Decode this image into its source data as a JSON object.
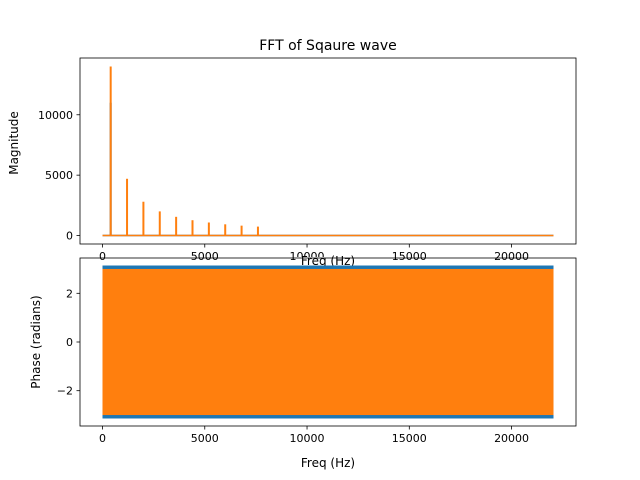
{
  "chart_data": [
    {
      "type": "line",
      "title": "FFT of Sqaure wave",
      "xlabel": "Freq (Hz)",
      "ylabel": "Magnitude",
      "xlim": [
        -1100,
        23150
      ],
      "ylim": [
        -700,
        14700
      ],
      "xticks": [
        0,
        5000,
        10000,
        15000,
        20000
      ],
      "xtick_labels": [
        "0",
        "5000",
        "10000",
        "15000",
        "20000"
      ],
      "yticks": [
        0,
        5000,
        10000
      ],
      "ytick_labels": [
        "0",
        "5000",
        "10000"
      ],
      "grid": false,
      "x_range": [
        0,
        22050
      ],
      "series": [
        {
          "color": "#1f77b4",
          "peaks": [
            {
              "x": 400,
              "y": 11000
            }
          ]
        },
        {
          "color": "#ff7f0e",
          "peaks": [
            {
              "x": 400,
              "y": 14000
            },
            {
              "x": 1200,
              "y": 4700
            },
            {
              "x": 2000,
              "y": 2800
            },
            {
              "x": 2800,
              "y": 2000
            },
            {
              "x": 3600,
              "y": 1550
            },
            {
              "x": 4400,
              "y": 1270
            },
            {
              "x": 5200,
              "y": 1080
            },
            {
              "x": 6000,
              "y": 930
            },
            {
              "x": 6800,
              "y": 820
            },
            {
              "x": 7600,
              "y": 740
            }
          ]
        }
      ]
    },
    {
      "type": "line",
      "title": "",
      "xlabel": "Freq (Hz)",
      "ylabel": "Phase (radians)",
      "xlim": [
        -1100,
        23150
      ],
      "ylim": [
        -3.45,
        3.45
      ],
      "xticks": [
        0,
        5000,
        10000,
        15000,
        20000
      ],
      "xtick_labels": [
        "0",
        "5000",
        "10000",
        "15000",
        "20000"
      ],
      "yticks": [
        -2,
        0,
        2
      ],
      "ytick_labels": [
        "−2",
        "0",
        "2"
      ],
      "grid": false,
      "x_range": [
        0,
        22050
      ],
      "series": [
        {
          "color": "#1f77b4",
          "y_range": [
            -3.1416,
            3.1416
          ]
        },
        {
          "color": "#ff7f0e",
          "y_range": [
            -3.0,
            3.0
          ]
        }
      ]
    }
  ]
}
